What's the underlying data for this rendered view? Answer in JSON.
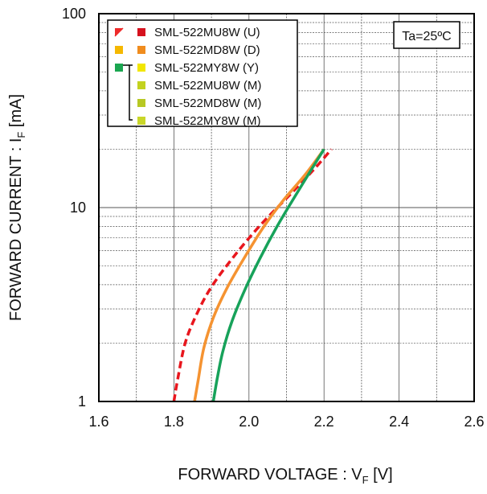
{
  "chart_data": {
    "type": "line",
    "xlabel": "FORWARD VOLTAGE : V",
    "xlabel_sub": "F",
    "xlabel_unit": " [V]",
    "ylabel": "FORWARD CURRENT : I",
    "ylabel_sub": "F",
    "ylabel_unit": " [mA]",
    "xlim": [
      1.6,
      2.6
    ],
    "ylim": [
      1,
      100
    ],
    "yscale": "log",
    "x_ticks": [
      "1.6",
      "1.8",
      "2.0",
      "2.2",
      "2.4",
      "2.6"
    ],
    "y_ticks": [
      "1",
      "10",
      "100"
    ],
    "grid": true,
    "annotation": "Ta=25ºC",
    "legend_position": "top-left",
    "legend_rows": [
      {
        "text": "SML-522MU8W (U)",
        "left": "#ee2a2a",
        "left_hatched": true,
        "right": "#d6121e"
      },
      {
        "text": "SML-522MD8W (D)",
        "left": "#f5b800",
        "right": "#f08c1e"
      },
      {
        "text": "SML-522MY8W (Y)",
        "left": "#1aa650",
        "right": "#f2e600"
      },
      {
        "text": "SML-522MU8W (M)",
        "left": "",
        "right": "#c3d21f"
      },
      {
        "text": "SML-522MD8W (M)",
        "left": "",
        "right": "#b7c824"
      },
      {
        "text": "SML-522MY8W (M)",
        "left": "",
        "right": "#c9d629"
      }
    ],
    "series": [
      {
        "color": "#e8161d",
        "dashed": true,
        "x": [
          1.8,
          1.81,
          1.83,
          1.86,
          1.9,
          1.96,
          2.03,
          2.11,
          2.17,
          2.22
        ],
        "y": [
          1.0,
          1.3,
          2.0,
          2.8,
          3.9,
          5.6,
          8.1,
          11.7,
          15.5,
          20.0
        ]
      },
      {
        "color": "#f59331",
        "dashed": false,
        "x": [
          1.855,
          1.865,
          1.88,
          1.905,
          1.94,
          1.985,
          2.04,
          2.09,
          2.15,
          2.2
        ],
        "y": [
          1.0,
          1.3,
          1.9,
          2.7,
          3.8,
          5.4,
          8.0,
          10.8,
          14.8,
          20.0
        ]
      },
      {
        "color": "#17a25a",
        "dashed": false,
        "x": [
          1.905,
          1.915,
          1.93,
          1.955,
          1.99,
          2.03,
          2.075,
          2.12,
          2.16,
          2.2
        ],
        "y": [
          1.0,
          1.3,
          1.8,
          2.6,
          3.8,
          5.5,
          8.0,
          11.2,
          15.0,
          20.0
        ]
      }
    ]
  }
}
